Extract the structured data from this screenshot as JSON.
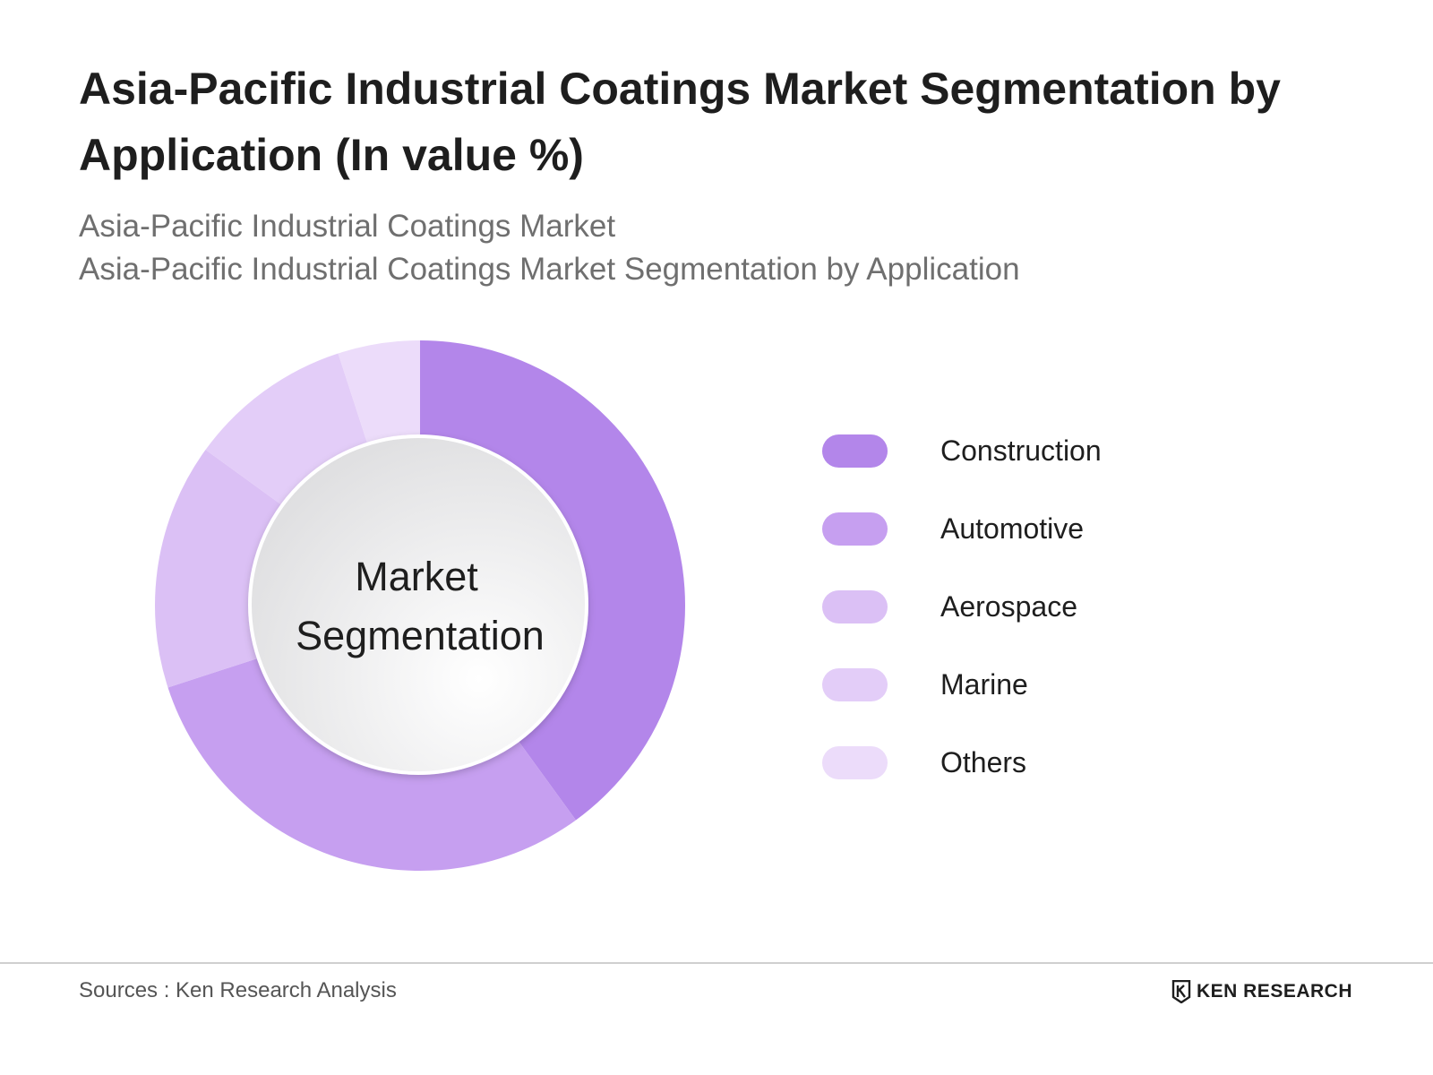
{
  "chart_data": {
    "type": "pie",
    "variant": "donut",
    "title": "Asia-Pacific Industrial Coatings Market Segmentation by Application (In value %)",
    "subtitle": [
      "Asia-Pacific Industrial Coatings Market",
      "Asia-Pacific Industrial Coatings Market Segmentation by Application"
    ],
    "center_label": [
      "Market",
      "Segmentation"
    ],
    "categories": [
      "Construction",
      "Automotive",
      "Aerospace",
      "Marine",
      "Others"
    ],
    "values": [
      40,
      30,
      15,
      10,
      5
    ],
    "colors": [
      "#b386ea",
      "#c69ff0",
      "#dbc0f5",
      "#e3cdf8",
      "#ecdcfa"
    ],
    "legend": "right"
  },
  "footer": {
    "source": "Sources : Ken Research Analysis",
    "brand": "KEN RESEARCH",
    "brand_icon": "ken-research-logo-icon"
  }
}
